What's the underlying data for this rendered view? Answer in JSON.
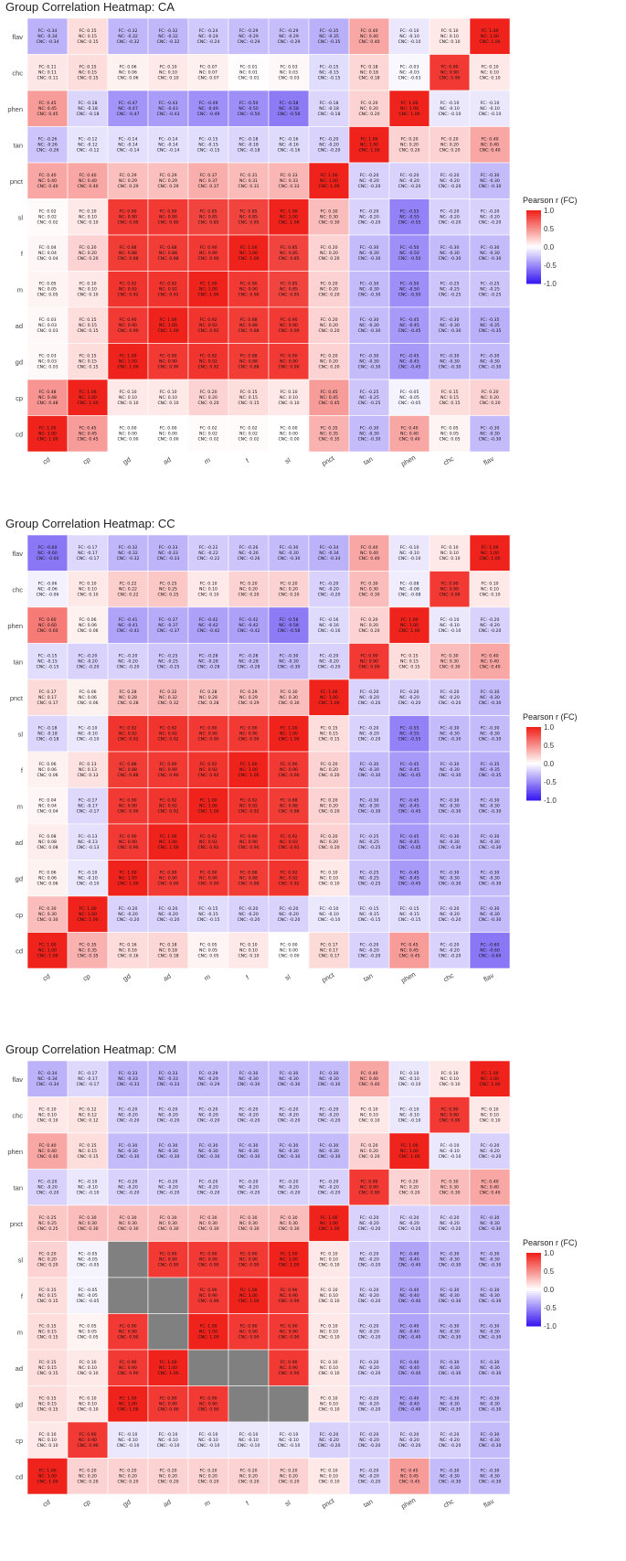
{
  "chart_data": [
    {
      "type": "heatmap",
      "title": "Group Correlation Heatmap: CA",
      "x_categories": [
        "cd",
        "cp",
        "gd",
        "ad",
        "m",
        "f",
        "sl",
        "pnct",
        "tan",
        "phen",
        "chc",
        "flav"
      ],
      "y_categories": [
        "flav",
        "chc",
        "phen",
        "tan",
        "pnct",
        "sl",
        "f",
        "m",
        "ad",
        "gd",
        "cp",
        "cd"
      ],
      "values": [
        [
          -0.34,
          0.15,
          -0.32,
          -0.32,
          -0.24,
          -0.29,
          -0.29,
          -0.35,
          0.4,
          -0.1,
          0.1,
          1.0
        ],
        [
          0.11,
          0.15,
          0.06,
          0.1,
          0.07,
          0.01,
          0.03,
          -0.15,
          0.18,
          -0.03,
          0.9,
          0.1
        ],
        [
          0.45,
          -0.18,
          -0.47,
          -0.43,
          -0.49,
          -0.5,
          -0.58,
          -0.18,
          0.2,
          1.0,
          -0.1,
          -0.1
        ],
        [
          -0.26,
          -0.12,
          -0.14,
          -0.14,
          -0.15,
          -0.18,
          -0.16,
          -0.2,
          1.0,
          0.2,
          0.2,
          0.4
        ],
        [
          0.4,
          0.4,
          0.29,
          0.29,
          0.37,
          0.31,
          0.33,
          1.0,
          -0.2,
          -0.2,
          -0.2,
          -0.3
        ],
        [
          0.02,
          0.1,
          0.9,
          0.9,
          0.85,
          0.85,
          1.0,
          0.3,
          -0.2,
          -0.55,
          -0.2,
          -0.2
        ],
        [
          0.04,
          0.2,
          0.88,
          0.88,
          0.9,
          1.0,
          0.85,
          0.2,
          -0.3,
          -0.5,
          -0.3,
          -0.3
        ],
        [
          0.05,
          0.1,
          0.92,
          0.92,
          1.0,
          0.9,
          0.85,
          0.2,
          -0.3,
          -0.5,
          -0.25,
          -0.25
        ],
        [
          0.03,
          0.15,
          0.9,
          1.0,
          0.92,
          0.88,
          0.9,
          0.2,
          -0.3,
          -0.45,
          -0.3,
          -0.35
        ],
        [
          0.03,
          0.15,
          1.0,
          0.9,
          0.92,
          0.88,
          0.9,
          0.2,
          -0.3,
          -0.45,
          -0.3,
          -0.3
        ],
        [
          0.48,
          1.0,
          0.1,
          0.1,
          0.2,
          0.15,
          0.1,
          0.45,
          -0.25,
          -0.05,
          0.15,
          0.2
        ],
        [
          1.0,
          0.45,
          0.0,
          0.0,
          0.02,
          0.02,
          0.0,
          0.35,
          -0.3,
          0.4,
          0.05,
          -0.3
        ]
      ],
      "legend": {
        "title": "Pearson r (FC)",
        "ticks": [
          "1.0",
          "0.5",
          "0.0",
          "-0.5",
          "-1.0"
        ],
        "position": "right"
      },
      "colors": {
        "low": "#3a1cf0",
        "mid": "#ffffff",
        "high": "#f0231c"
      }
    },
    {
      "type": "heatmap",
      "title": "Group Correlation Heatmap: CC",
      "x_categories": [
        "cd",
        "cp",
        "gd",
        "ad",
        "m",
        "f",
        "sl",
        "pnct",
        "tan",
        "phen",
        "chc",
        "flav"
      ],
      "y_categories": [
        "flav",
        "chc",
        "phen",
        "tan",
        "pnct",
        "sl",
        "f",
        "m",
        "ad",
        "gd",
        "cp",
        "cd"
      ],
      "values": [
        [
          -0.6,
          -0.17,
          -0.32,
          -0.33,
          -0.22,
          -0.26,
          -0.3,
          -0.34,
          0.4,
          -0.1,
          0.1,
          1.0
        ],
        [
          -0.06,
          0.1,
          0.22,
          0.25,
          0.1,
          0.2,
          0.2,
          -0.2,
          0.3,
          -0.08,
          0.9,
          0.1
        ],
        [
          0.6,
          0.06,
          -0.41,
          -0.37,
          -0.42,
          -0.42,
          -0.58,
          -0.16,
          0.2,
          1.0,
          -0.1,
          -0.2
        ],
        [
          -0.15,
          -0.2,
          -0.2,
          -0.25,
          -0.28,
          -0.28,
          -0.3,
          -0.2,
          0.9,
          0.15,
          0.3,
          0.4
        ],
        [
          0.17,
          0.06,
          0.28,
          0.32,
          0.28,
          0.29,
          0.3,
          1.0,
          -0.2,
          -0.2,
          -0.2,
          -0.3
        ],
        [
          -0.18,
          -0.1,
          0.92,
          0.92,
          0.9,
          0.9,
          1.0,
          0.15,
          -0.2,
          -0.55,
          -0.3,
          -0.3
        ],
        [
          0.06,
          0.13,
          0.88,
          0.9,
          0.92,
          1.0,
          0.9,
          0.2,
          -0.3,
          -0.45,
          -0.3,
          -0.35
        ],
        [
          0.04,
          -0.17,
          0.9,
          0.92,
          1.0,
          0.92,
          0.88,
          0.2,
          -0.3,
          -0.45,
          -0.3,
          -0.3
        ],
        [
          0.08,
          -0.13,
          0.9,
          1.0,
          0.92,
          0.9,
          0.92,
          0.2,
          -0.25,
          -0.45,
          -0.3,
          -0.3
        ],
        [
          0.06,
          -0.1,
          1.0,
          0.9,
          0.9,
          0.88,
          0.92,
          0.1,
          -0.25,
          -0.45,
          -0.3,
          -0.3
        ],
        [
          0.3,
          1.0,
          -0.2,
          -0.2,
          -0.15,
          -0.2,
          -0.2,
          -0.1,
          -0.15,
          -0.15,
          -0.2,
          -0.3
        ],
        [
          1.0,
          0.35,
          0.16,
          0.18,
          0.05,
          0.1,
          0.0,
          0.17,
          -0.2,
          0.45,
          -0.2,
          -0.6
        ]
      ],
      "legend": {
        "title": "Pearson r (FC)",
        "ticks": [
          "1.0",
          "0.5",
          "0.0",
          "-0.5",
          "-1.0"
        ],
        "position": "right"
      },
      "colors": {
        "low": "#3a1cf0",
        "mid": "#ffffff",
        "high": "#f0231c"
      }
    },
    {
      "type": "heatmap",
      "title": "Group Correlation Heatmap: CM",
      "x_categories": [
        "cd",
        "cp",
        "gd",
        "ad",
        "m",
        "f",
        "sl",
        "pnct",
        "tan",
        "phen",
        "chc",
        "flav"
      ],
      "y_categories": [
        "flav",
        "chc",
        "phen",
        "tan",
        "pnct",
        "sl",
        "f",
        "m",
        "ad",
        "gd",
        "cp",
        "cd"
      ],
      "values": [
        [
          -0.34,
          -0.17,
          -0.33,
          -0.33,
          -0.29,
          -0.3,
          -0.3,
          -0.3,
          0.4,
          -0.1,
          0.1,
          1.0
        ],
        [
          0.1,
          0.12,
          -0.2,
          -0.2,
          -0.2,
          -0.2,
          -0.2,
          -0.2,
          0.1,
          -0.1,
          0.9,
          0.1
        ],
        [
          0.4,
          0.15,
          -0.3,
          -0.3,
          -0.3,
          -0.3,
          -0.3,
          -0.3,
          0.2,
          1.0,
          -0.1,
          -0.2
        ],
        [
          -0.2,
          -0.1,
          -0.2,
          -0.2,
          -0.2,
          -0.2,
          -0.2,
          -0.2,
          0.9,
          0.2,
          0.3,
          0.4
        ],
        [
          0.25,
          0.3,
          0.3,
          0.3,
          0.3,
          0.3,
          0.3,
          1.0,
          -0.2,
          -0.2,
          -0.2,
          -0.3
        ],
        [
          0.2,
          -0.05,
          null,
          0.9,
          0.9,
          0.9,
          1.0,
          0.1,
          -0.2,
          -0.4,
          -0.3,
          -0.3
        ],
        [
          0.15,
          -0.05,
          null,
          null,
          0.9,
          1.0,
          0.9,
          0.1,
          -0.2,
          -0.4,
          -0.3,
          -0.3
        ],
        [
          0.15,
          0.05,
          0.9,
          null,
          1.0,
          0.9,
          0.9,
          0.1,
          -0.2,
          -0.4,
          -0.3,
          -0.3
        ],
        [
          0.15,
          0.1,
          0.9,
          1.0,
          null,
          null,
          0.9,
          0.1,
          -0.2,
          -0.4,
          -0.3,
          -0.3
        ],
        [
          0.15,
          0.1,
          1.0,
          0.9,
          0.9,
          null,
          null,
          0.1,
          -0.2,
          -0.4,
          -0.3,
          -0.3
        ],
        [
          0.1,
          0.9,
          -0.1,
          -0.1,
          -0.1,
          -0.1,
          -0.1,
          -0.2,
          -0.2,
          -0.2,
          -0.2,
          -0.3
        ],
        [
          1.0,
          0.2,
          0.2,
          0.2,
          0.2,
          0.2,
          0.2,
          0.1,
          -0.2,
          0.45,
          -0.3,
          -0.3
        ]
      ],
      "legend": {
        "title": "Pearson r (FC)",
        "ticks": [
          "1.0",
          "0.5",
          "0.0",
          "-0.5",
          "-1.0"
        ],
        "position": "right"
      },
      "colors": {
        "low": "#3a1cf0",
        "mid": "#ffffff",
        "high": "#f0231c",
        "na": "#808080"
      }
    }
  ]
}
